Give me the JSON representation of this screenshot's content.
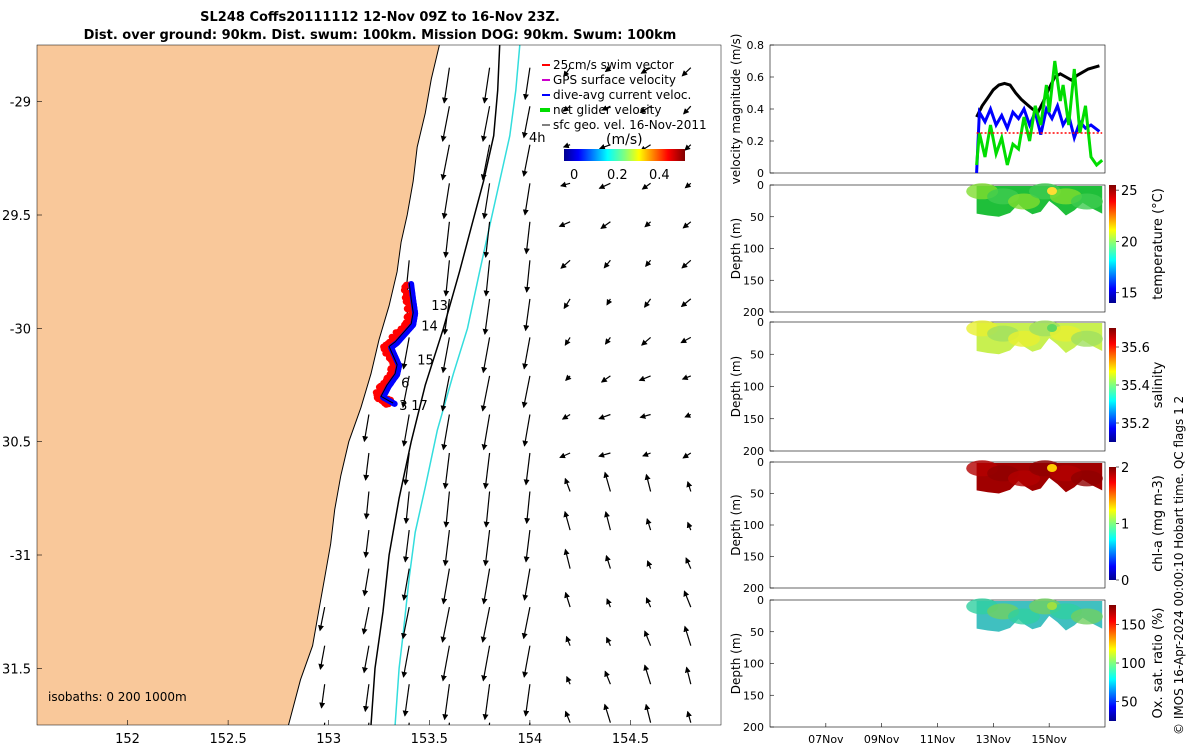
{
  "title": {
    "line1": "SL248 Coffs20111112 12-Nov 09Z to 16-Nov 23Z.",
    "line2": "Dist. over ground: 90km. Dist. swum: 100km. Mission DOG: 90km. Swum: 100km"
  },
  "credit": "© IMOS 16-Apr-2024 00:00:10 Hobart time. QC flags 1  2",
  "colors": {
    "land": "#F9C89A",
    "swim": "#ff0000",
    "gps": "#cc00cc",
    "dive": "#0000ff",
    "net": "#00dd00",
    "sfc": "#000000",
    "isobath200": "#000000",
    "isobath1000": "#33dddd"
  },
  "chart_data": [
    {
      "type": "map",
      "x_ticks": [
        152,
        152.5,
        153,
        153.5,
        154,
        154.5
      ],
      "y_ticks": [
        -29,
        -29.5,
        -30,
        -30.5,
        -31,
        -31.5
      ],
      "x_tick_labels": [
        "152",
        "152.5",
        "153",
        "153.5",
        "154",
        "154.5"
      ],
      "y_tick_labels": [
        "-29",
        "29.5",
        "-30",
        "30.5",
        "-31",
        "31.5"
      ],
      "xlim": [
        151.55,
        154.95
      ],
      "ylim": [
        -31.75,
        -28.75
      ],
      "legend": {
        "placement": "top-right",
        "entries": [
          "25cm/s swim vector",
          "GPS surface velocity",
          "dive-avg current veloc.",
          "net glider velocity",
          "sfc geo. vel. 16-Nov-2011"
        ]
      },
      "colorbar": {
        "label": "(m/s)",
        "ticks": [
          "0",
          "0.2",
          "0.4"
        ]
      },
      "time_label": "4h",
      "isobath_label": "isobaths: 0   200  1000m",
      "day_labels": [
        {
          "text": "13",
          "lon": 153.51,
          "lat": -29.92
        },
        {
          "text": "14",
          "lon": 153.46,
          "lat": -30.01
        },
        {
          "text": "15",
          "lon": 153.44,
          "lat": -30.16
        },
        {
          "text": "6",
          "lon": 153.36,
          "lat": -30.26
        },
        {
          "text": "17",
          "lon": 153.41,
          "lat": -30.36
        },
        {
          "text": "3",
          "lon": 153.35,
          "lat": -30.36
        }
      ],
      "glider_track": [
        [
          153.4,
          -29.8
        ],
        [
          153.41,
          -29.87
        ],
        [
          153.42,
          -29.93
        ],
        [
          153.41,
          -29.98
        ],
        [
          153.37,
          -30.02
        ],
        [
          153.33,
          -30.06
        ],
        [
          153.3,
          -30.08
        ],
        [
          153.32,
          -30.12
        ],
        [
          153.34,
          -30.16
        ],
        [
          153.33,
          -30.2
        ],
        [
          153.29,
          -30.25
        ],
        [
          153.26,
          -30.3
        ],
        [
          153.3,
          -30.32
        ],
        [
          153.32,
          -30.33
        ]
      ],
      "coastline": [
        [
          153.55,
          -28.75
        ],
        [
          153.51,
          -28.9
        ],
        [
          153.48,
          -29.05
        ],
        [
          153.44,
          -29.2
        ],
        [
          153.42,
          -29.35
        ],
        [
          153.39,
          -29.5
        ],
        [
          153.36,
          -29.62
        ],
        [
          153.34,
          -29.75
        ],
        [
          153.3,
          -29.9
        ],
        [
          153.25,
          -30.05
        ],
        [
          153.21,
          -30.2
        ],
        [
          153.16,
          -30.35
        ],
        [
          153.1,
          -30.5
        ],
        [
          153.06,
          -30.65
        ],
        [
          153.03,
          -30.8
        ],
        [
          153.01,
          -30.95
        ],
        [
          152.98,
          -31.1
        ],
        [
          152.95,
          -31.25
        ],
        [
          152.92,
          -31.4
        ],
        [
          152.86,
          -31.55
        ],
        [
          152.8,
          -31.75
        ]
      ],
      "isobath_200": [
        [
          153.85,
          -28.75
        ],
        [
          153.84,
          -28.95
        ],
        [
          153.82,
          -29.15
        ],
        [
          153.77,
          -29.35
        ],
        [
          153.71,
          -29.55
        ],
        [
          153.65,
          -29.75
        ],
        [
          153.57,
          -30.0
        ],
        [
          153.48,
          -30.25
        ],
        [
          153.41,
          -30.5
        ],
        [
          153.35,
          -30.75
        ],
        [
          153.3,
          -31.0
        ],
        [
          153.27,
          -31.25
        ],
        [
          153.23,
          -31.5
        ],
        [
          153.21,
          -31.75
        ]
      ],
      "isobath_1000": [
        [
          153.95,
          -28.75
        ],
        [
          153.93,
          -28.95
        ],
        [
          153.9,
          -29.15
        ],
        [
          153.85,
          -29.35
        ],
        [
          153.8,
          -29.55
        ],
        [
          153.75,
          -29.75
        ],
        [
          153.69,
          -30.0
        ],
        [
          153.62,
          -30.2
        ],
        [
          153.54,
          -30.45
        ],
        [
          153.48,
          -30.7
        ],
        [
          153.43,
          -30.9
        ],
        [
          153.4,
          -31.1
        ],
        [
          153.37,
          -31.35
        ],
        [
          153.35,
          -31.5
        ],
        [
          153.33,
          -31.75
        ]
      ],
      "surface_velocity_field": {
        "lons": [
          152.98,
          153.2,
          153.4,
          153.6,
          153.8,
          154.0,
          154.2,
          154.4,
          154.6,
          154.8
        ],
        "lats": [
          -28.85,
          -29.02,
          -29.19,
          -29.36,
          -29.53,
          -29.7,
          -29.87,
          -30.04,
          -30.21,
          -30.38,
          -30.55,
          -30.72,
          -30.89,
          -31.06,
          -31.23,
          -31.4,
          -31.57,
          -31.74
        ],
        "description": "southward-flowing East Australian Current along the shelf break, weak northward return flow offshore in the south"
      }
    },
    {
      "type": "line",
      "ylabel": "velocity magnitude (m/s)",
      "ylim": [
        0,
        0.8
      ],
      "y_ticks": [
        "0",
        "0.2",
        "0.4",
        "0.6",
        "0.8"
      ],
      "x_range_days": [
        5.0,
        17.0
      ],
      "series": [
        {
          "color": "#000000",
          "points": [
            [
              12.4,
              0.35
            ],
            [
              12.6,
              0.42
            ],
            [
              12.8,
              0.47
            ],
            [
              13.0,
              0.52
            ],
            [
              13.2,
              0.55
            ],
            [
              13.4,
              0.56
            ],
            [
              13.6,
              0.55
            ],
            [
              13.8,
              0.5
            ],
            [
              14.0,
              0.46
            ],
            [
              14.2,
              0.43
            ],
            [
              14.4,
              0.4
            ],
            [
              14.6,
              0.38
            ],
            [
              14.8,
              0.45
            ],
            [
              15.0,
              0.53
            ],
            [
              15.2,
              0.6
            ],
            [
              15.4,
              0.62
            ],
            [
              15.6,
              0.6
            ],
            [
              15.8,
              0.58
            ],
            [
              16.0,
              0.61
            ],
            [
              16.2,
              0.63
            ],
            [
              16.4,
              0.65
            ],
            [
              16.6,
              0.66
            ],
            [
              16.8,
              0.67
            ]
          ]
        },
        {
          "color": "#0000ff",
          "points": [
            [
              12.4,
              0.0
            ],
            [
              12.5,
              0.38
            ],
            [
              12.7,
              0.32
            ],
            [
              12.9,
              0.4
            ],
            [
              13.1,
              0.3
            ],
            [
              13.3,
              0.36
            ],
            [
              13.5,
              0.28
            ],
            [
              13.7,
              0.38
            ],
            [
              13.9,
              0.34
            ],
            [
              14.1,
              0.4
            ],
            [
              14.3,
              0.3
            ],
            [
              14.5,
              0.38
            ],
            [
              14.7,
              0.24
            ],
            [
              14.9,
              0.4
            ],
            [
              15.1,
              0.34
            ],
            [
              15.3,
              0.42
            ],
            [
              15.5,
              0.3
            ],
            [
              15.7,
              0.36
            ],
            [
              15.9,
              0.22
            ],
            [
              16.1,
              0.32
            ],
            [
              16.3,
              0.28
            ],
            [
              16.5,
              0.3
            ],
            [
              16.8,
              0.26
            ]
          ]
        },
        {
          "color": "#00dd00",
          "points": [
            [
              12.4,
              0.05
            ],
            [
              12.5,
              0.25
            ],
            [
              12.7,
              0.1
            ],
            [
              12.9,
              0.3
            ],
            [
              13.1,
              0.12
            ],
            [
              13.3,
              0.22
            ],
            [
              13.5,
              0.05
            ],
            [
              13.7,
              0.18
            ],
            [
              13.9,
              0.15
            ],
            [
              14.1,
              0.35
            ],
            [
              14.3,
              0.2
            ],
            [
              14.5,
              0.42
            ],
            [
              14.7,
              0.3
            ],
            [
              14.9,
              0.55
            ],
            [
              15.0,
              0.38
            ],
            [
              15.2,
              0.7
            ],
            [
              15.4,
              0.45
            ],
            [
              15.5,
              0.55
            ],
            [
              15.7,
              0.3
            ],
            [
              15.9,
              0.65
            ],
            [
              16.1,
              0.25
            ],
            [
              16.3,
              0.42
            ],
            [
              16.5,
              0.1
            ],
            [
              16.7,
              0.05
            ],
            [
              16.9,
              0.08
            ]
          ]
        },
        {
          "color": "#ff0000",
          "points": [
            [
              12.4,
              0.25
            ],
            [
              16.9,
              0.25
            ]
          ]
        }
      ]
    },
    {
      "type": "heatmap",
      "ylabel": "Depth (m)",
      "ylim": [
        200,
        0
      ],
      "y_ticks": [
        "0",
        "50",
        "100",
        "150",
        "200"
      ],
      "colorbar": {
        "label": "temperature (°C)",
        "ticks": [
          "15",
          "20",
          "25"
        ],
        "range": [
          14,
          25.5
        ]
      }
    },
    {
      "type": "heatmap",
      "ylabel": "Depth (m)",
      "ylim": [
        200,
        0
      ],
      "y_ticks": [
        "0",
        "50",
        "100",
        "150",
        "200"
      ],
      "colorbar": {
        "label": "salinity",
        "ticks": [
          "35.2",
          "35.4",
          "35.6"
        ],
        "range": [
          35.1,
          35.7
        ]
      }
    },
    {
      "type": "heatmap",
      "ylabel": "Depth (m)",
      "ylim": [
        200,
        0
      ],
      "y_ticks": [
        "0",
        "50",
        "100",
        "150",
        "200"
      ],
      "colorbar": {
        "label": "chl-a (mg m-3)",
        "ticks": [
          "0",
          "1",
          "2"
        ],
        "range": [
          0,
          2
        ]
      }
    },
    {
      "type": "heatmap",
      "ylabel": "Depth (m)",
      "ylim": [
        200,
        0
      ],
      "y_ticks": [
        "0",
        "50",
        "100",
        "150",
        "200"
      ],
      "x_tick_labels": [
        "07Nov",
        "09Nov",
        "11Nov",
        "13Nov",
        "15Nov"
      ],
      "x_tick_days": [
        7,
        9,
        11,
        13,
        15
      ],
      "colorbar": {
        "label": "Ox. sat. ratio (%)",
        "ticks": [
          "50",
          "100",
          "150"
        ],
        "range": [
          25,
          175
        ]
      }
    }
  ]
}
